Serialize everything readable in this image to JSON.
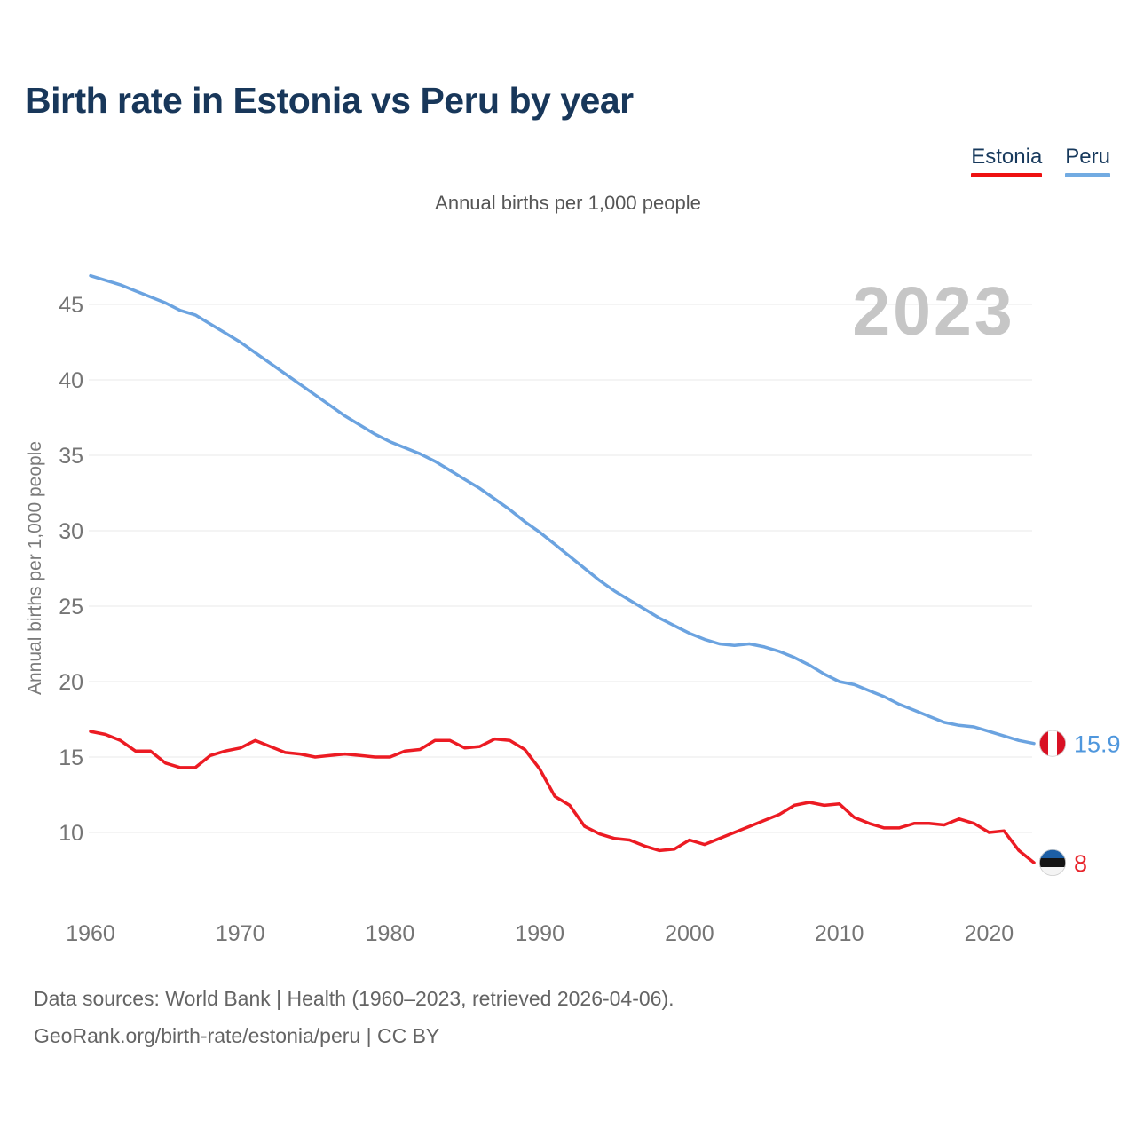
{
  "header": {
    "title": "Birth rate in Estonia vs Peru by year"
  },
  "legend": {
    "items": [
      {
        "label": "Estonia",
        "color": "#ee1111"
      },
      {
        "label": "Peru",
        "color": "#72abe2"
      }
    ]
  },
  "chart": {
    "subtitle": "Annual births per 1,000 people",
    "y_axis_label": "Annual births per 1,000 people",
    "watermark": "2023",
    "end_labels": {
      "peru": "15.9",
      "estonia": "8"
    }
  },
  "chart_data": {
    "type": "line",
    "title": "Birth rate in Estonia vs Peru by year",
    "subtitle": "Annual births per 1,000 people",
    "xlabel": "",
    "ylabel": "Annual births per 1,000 people",
    "ylim": [
      8,
      47
    ],
    "yticks": [
      10,
      15,
      20,
      25,
      30,
      35,
      40,
      45
    ],
    "xticks": [
      1960,
      1970,
      1980,
      1990,
      2000,
      2010,
      2020
    ],
    "grid": "horizontal",
    "legend_position": "top-right",
    "years": [
      1960,
      1961,
      1962,
      1963,
      1964,
      1965,
      1966,
      1967,
      1968,
      1969,
      1970,
      1971,
      1972,
      1973,
      1974,
      1975,
      1976,
      1977,
      1978,
      1979,
      1980,
      1981,
      1982,
      1983,
      1984,
      1985,
      1986,
      1987,
      1988,
      1989,
      1990,
      1991,
      1992,
      1993,
      1994,
      1995,
      1996,
      1997,
      1998,
      1999,
      2000,
      2001,
      2002,
      2003,
      2004,
      2005,
      2006,
      2007,
      2008,
      2009,
      2010,
      2011,
      2012,
      2013,
      2014,
      2015,
      2016,
      2017,
      2018,
      2019,
      2020,
      2021,
      2022,
      2023
    ],
    "series": [
      {
        "name": "Estonia",
        "color": "#ec1b23",
        "value_label_color": "#e8242b",
        "end_label": "8",
        "values": [
          16.7,
          16.5,
          16.1,
          15.4,
          15.4,
          14.6,
          14.3,
          14.3,
          15.1,
          15.4,
          15.6,
          16.1,
          15.7,
          15.3,
          15.2,
          15.0,
          15.1,
          15.2,
          15.1,
          15.0,
          15.0,
          15.4,
          15.5,
          16.1,
          16.1,
          15.6,
          15.7,
          16.2,
          16.1,
          15.5,
          14.2,
          12.4,
          11.8,
          10.4,
          9.9,
          9.6,
          9.5,
          9.1,
          8.8,
          8.9,
          9.5,
          9.2,
          9.6,
          10.0,
          10.4,
          10.8,
          11.2,
          11.8,
          12.0,
          11.8,
          11.9,
          11.0,
          10.6,
          10.3,
          10.3,
          10.6,
          10.6,
          10.5,
          10.9,
          10.6,
          10.0,
          10.1,
          8.8,
          8.0
        ]
      },
      {
        "name": "Peru",
        "color": "#6ba3e0",
        "value_label_color": "#4f97dd",
        "end_label": "15.9",
        "values": [
          46.9,
          46.6,
          46.3,
          45.9,
          45.5,
          45.1,
          44.6,
          44.3,
          43.7,
          43.1,
          42.5,
          41.8,
          41.1,
          40.4,
          39.7,
          39.0,
          38.3,
          37.6,
          37.0,
          36.4,
          35.9,
          35.5,
          35.1,
          34.6,
          34.0,
          33.4,
          32.8,
          32.1,
          31.4,
          30.6,
          29.9,
          29.1,
          28.3,
          27.5,
          26.7,
          26.0,
          25.4,
          24.8,
          24.2,
          23.7,
          23.2,
          22.8,
          22.5,
          22.4,
          22.5,
          22.3,
          22.0,
          21.6,
          21.1,
          20.5,
          20.0,
          19.8,
          19.4,
          19.0,
          18.5,
          18.1,
          17.7,
          17.3,
          17.1,
          17.0,
          16.7,
          16.4,
          16.1,
          15.9
        ]
      }
    ]
  },
  "footer": {
    "line1": "Data sources: World Bank | Health (1960–2023, retrieved 2026-04-06).",
    "line2": "GeoRank.org/birth-rate/estonia/peru | CC BY"
  }
}
